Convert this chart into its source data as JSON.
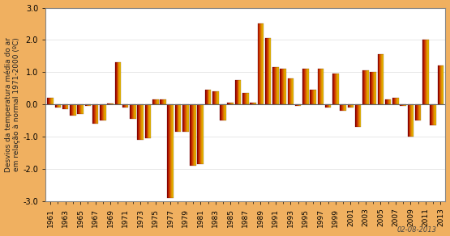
{
  "years": [
    1961,
    1962,
    1963,
    1964,
    1965,
    1966,
    1967,
    1968,
    1969,
    1970,
    1971,
    1972,
    1973,
    1974,
    1975,
    1976,
    1977,
    1978,
    1979,
    1980,
    1981,
    1982,
    1983,
    1984,
    1985,
    1986,
    1987,
    1988,
    1989,
    1990,
    1991,
    1992,
    1993,
    1994,
    1995,
    1996,
    1997,
    1998,
    1999,
    2000,
    2001,
    2002,
    2003,
    2004,
    2005,
    2006,
    2007,
    2008,
    2009,
    2010,
    2011,
    2012,
    2013
  ],
  "values": [
    0.2,
    -0.1,
    -0.15,
    -0.35,
    -0.3,
    -0.05,
    -0.6,
    -0.5,
    0.02,
    1.3,
    -0.1,
    -0.45,
    -1.1,
    -1.05,
    0.15,
    0.15,
    -2.9,
    -0.85,
    -0.85,
    -1.9,
    -1.85,
    0.45,
    0.4,
    -0.5,
    0.05,
    0.75,
    0.35,
    0.05,
    2.5,
    2.05,
    1.15,
    1.1,
    0.8,
    -0.05,
    1.1,
    0.45,
    1.1,
    -0.1,
    0.95,
    -0.2,
    -0.1,
    -0.7,
    1.05,
    1.0,
    1.55,
    0.15,
    0.2,
    -0.05,
    -1.0,
    -0.5,
    2.0,
    -0.65,
    1.2
  ],
  "ylabel": "Desvios da temperatura média do ar\nem relação à normal 1971-2000 (ºC)",
  "ylim": [
    -3.0,
    3.0
  ],
  "yticks": [
    -3.0,
    -2.0,
    -1.0,
    0.0,
    1.0,
    2.0,
    3.0
  ],
  "date_text": "02-08-2013",
  "fig_bg": "#f0b060",
  "plot_bg": "#ffffff",
  "grid_color": "#dddddd",
  "border_color": "#888888",
  "color_dark": "#8b0000",
  "color_mid": "#cc3300",
  "color_orange": "#dd6600",
  "color_yellow": "#e8c000"
}
